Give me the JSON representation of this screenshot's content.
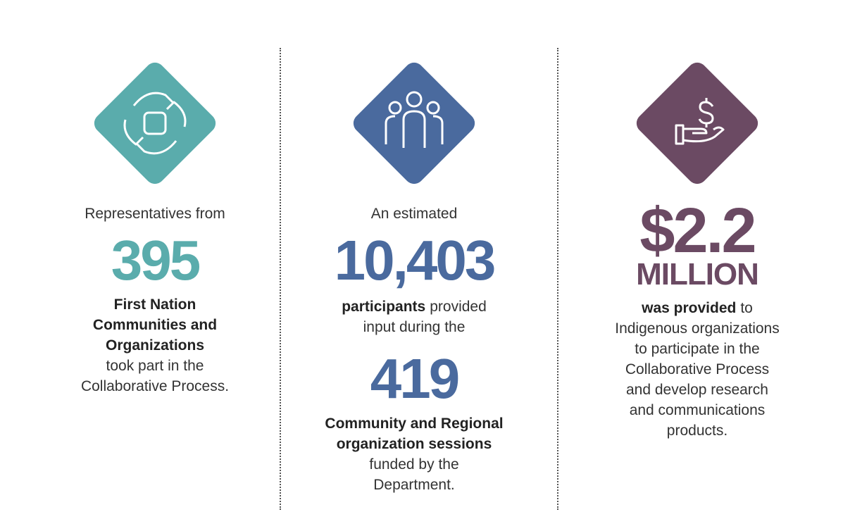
{
  "columns": [
    {
      "intro": "Representatives from",
      "figure": "395",
      "lines": [
        [
          {
            "text": "First Nation",
            "bold": true
          }
        ],
        [
          {
            "text": "Communities and",
            "bold": true
          }
        ],
        [
          {
            "text": "Organizations",
            "bold": true
          }
        ],
        [
          {
            "text": "took part in the",
            "bold": false
          }
        ],
        [
          {
            "text": "Collaborative Process.",
            "bold": false
          }
        ]
      ]
    },
    {
      "intro": "An estimated",
      "figure": "10,403",
      "lines": [
        [
          {
            "text": "participants",
            "bold": true
          },
          {
            "text": "provided",
            "bold": false
          }
        ],
        [
          {
            "text": "input during the",
            "bold": false
          }
        ]
      ],
      "figure2": "419",
      "lines2": [
        [
          {
            "text": "Community and Regional",
            "bold": true
          }
        ],
        [
          {
            "text": "organization sessions",
            "bold": true
          }
        ],
        [
          {
            "text": "funded by the",
            "bold": false
          }
        ],
        [
          {
            "text": "Department.",
            "bold": false
          }
        ]
      ]
    },
    {
      "figure": "$2.2",
      "figure_unit": "MILLION",
      "lines": [
        [
          {
            "text": "was provided",
            "bold": true
          },
          {
            "text": "to",
            "bold": false
          }
        ],
        [
          {
            "text": "Indigenous organizations",
            "bold": false
          }
        ],
        [
          {
            "text": "to participate in the",
            "bold": false
          }
        ],
        [
          {
            "text": "Collaborative Process",
            "bold": false
          }
        ],
        [
          {
            "text": "and develop research",
            "bold": false
          }
        ],
        [
          {
            "text": "and communications",
            "bold": false
          }
        ],
        [
          {
            "text": "products.",
            "bold": false
          }
        ]
      ]
    }
  ]
}
